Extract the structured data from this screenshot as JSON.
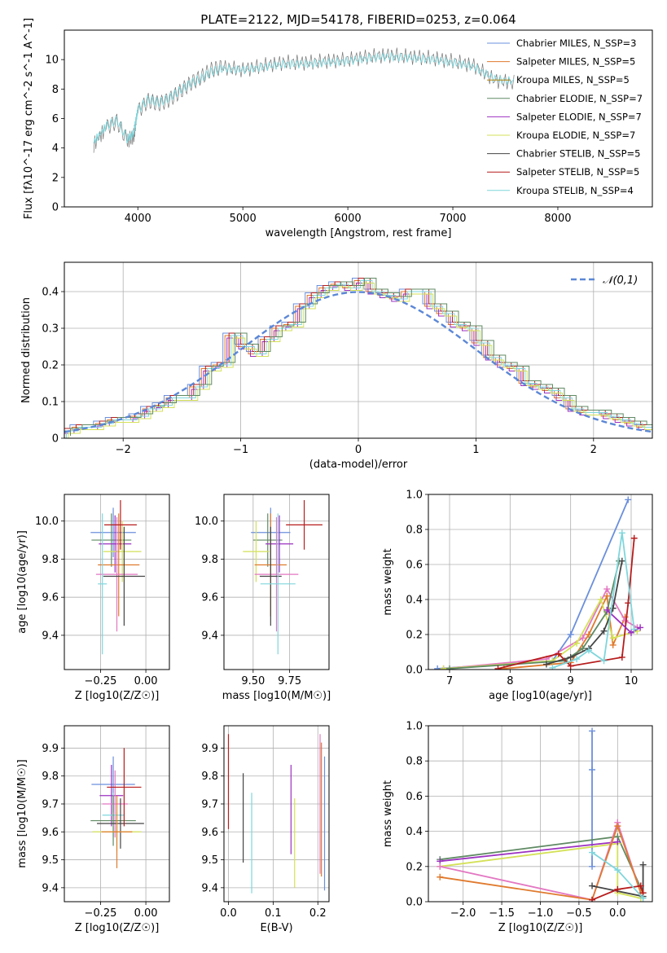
{
  "figure_title": "PLATE=2122, MJD=54178, FIBERID=0253, z=0.064",
  "legend": [
    {
      "label": "Chabrier MILES, N_SSP=3",
      "color": "#6b8fdc"
    },
    {
      "label": "Salpeter MILES, N_SSP=5",
      "color": "#e07a2e"
    },
    {
      "label": "Kroupa MILES, N_SSP=5",
      "color": "#b8860b"
    },
    {
      "label": "Chabrier ELODIE, N_SSP=7",
      "color": "#5f8a63"
    },
    {
      "label": "Salpeter ELODIE, N_SSP=7",
      "color": "#9b30c0"
    },
    {
      "label": "Kroupa ELODIE, N_SSP=7",
      "color": "#d4e157"
    },
    {
      "label": "Chabrier STELIB, N_SSP=5",
      "color": "#444444"
    },
    {
      "label": "Salpeter STELIB, N_SSP=5",
      "color": "#b71c1c"
    },
    {
      "label": "Kroupa STELIB, N_SSP=4",
      "color": "#7fd6dc"
    }
  ],
  "chart_data": [
    {
      "id": "spectrum",
      "type": "line",
      "title": "PLATE=2122, MJD=54178, FIBERID=0253, z=0.064",
      "xlabel": "wavelength [Angstrom, rest frame]",
      "ylabel": "Flux [fλ10^-17 erg cm^-2 s^-1 A^-1]",
      "xlim": [
        3300,
        8900
      ],
      "ylim": [
        0,
        12
      ],
      "xticks": [
        4000,
        5000,
        6000,
        7000,
        8000
      ],
      "yticks": [
        0,
        2,
        4,
        6,
        8,
        10
      ],
      "series": [
        {
          "name": "data",
          "color": "#777777",
          "x": [
            3580,
            3700,
            3800,
            3900,
            3960,
            4000,
            4100,
            4200,
            4300,
            4400,
            4500,
            4600,
            4700,
            4800,
            5000,
            5200,
            5400,
            5600,
            5800,
            6000,
            6200,
            6400,
            6600,
            6800,
            7000,
            7200,
            7400,
            7600
          ],
          "y": [
            4.2,
            5.4,
            5.8,
            4.5,
            4.8,
            6.5,
            7.2,
            7.0,
            7.3,
            7.8,
            8.4,
            8.8,
            9.3,
            9.5,
            9.3,
            9.6,
            9.8,
            9.8,
            9.9,
            10.0,
            10.2,
            10.3,
            10.2,
            10.1,
            9.9,
            9.6,
            8.6,
            8.4
          ]
        },
        {
          "name": "model",
          "color": "#7fd6dc",
          "x": [
            3580,
            3700,
            3800,
            3900,
            3960,
            4000,
            4100,
            4200,
            4300,
            4400,
            4500,
            4600,
            4700,
            4800,
            5000,
            5200,
            5400,
            5600,
            5800,
            6000,
            6200,
            6400,
            6600,
            6800,
            7000,
            7200,
            7400,
            7600
          ],
          "y": [
            4.4,
            5.5,
            5.9,
            4.6,
            5.0,
            6.6,
            7.3,
            7.1,
            7.4,
            7.9,
            8.4,
            8.7,
            9.2,
            9.4,
            9.3,
            9.5,
            9.7,
            9.7,
            9.8,
            9.9,
            10.1,
            10.2,
            10.1,
            10.0,
            9.8,
            9.5,
            8.7,
            8.5
          ]
        }
      ]
    },
    {
      "id": "residuals",
      "type": "line",
      "xlabel": "(data-model)/error",
      "ylabel": "Normed distribution",
      "xlim": [
        -2.5,
        2.5
      ],
      "ylim": [
        0,
        0.48
      ],
      "xticks": [
        -2,
        -1,
        0,
        1,
        2
      ],
      "yticks": [
        0.0,
        0.1,
        0.2,
        0.3,
        0.4
      ],
      "legend": "𝒩(0,1)",
      "bins": [
        -2.5,
        -2.4,
        -2.3,
        -2.2,
        -2.1,
        -2.0,
        -1.9,
        -1.8,
        -1.7,
        -1.6,
        -1.5,
        -1.4,
        -1.3,
        -1.2,
        -1.1,
        -1.0,
        -0.9,
        -0.8,
        -0.7,
        -0.6,
        -0.5,
        -0.4,
        -0.3,
        -0.2,
        -0.1,
        0.0,
        0.1,
        0.2,
        0.3,
        0.4,
        0.5,
        0.6,
        0.7,
        0.8,
        0.9,
        1.0,
        1.1,
        1.2,
        1.3,
        1.4,
        1.5,
        1.6,
        1.7,
        1.8,
        1.9,
        2.0,
        2.1,
        2.2,
        2.3,
        2.4
      ],
      "hist": [
        0.02,
        0.03,
        0.03,
        0.04,
        0.05,
        0.05,
        0.06,
        0.08,
        0.09,
        0.11,
        0.11,
        0.14,
        0.19,
        0.2,
        0.28,
        0.25,
        0.23,
        0.27,
        0.3,
        0.31,
        0.36,
        0.39,
        0.41,
        0.42,
        0.41,
        0.43,
        0.4,
        0.39,
        0.38,
        0.4,
        0.4,
        0.36,
        0.34,
        0.31,
        0.3,
        0.26,
        0.22,
        0.2,
        0.19,
        0.15,
        0.14,
        0.13,
        0.11,
        0.08,
        0.07,
        0.07,
        0.06,
        0.05,
        0.04,
        0.03
      ]
    },
    {
      "id": "age-vs-Z",
      "type": "scatter",
      "xlabel": "Z [log10(Z/Z☉)]",
      "ylabel": "age  [log10(age/yr)]",
      "xlim": [
        -0.45,
        0.13
      ],
      "ylim": [
        9.22,
        10.14
      ],
      "xticks": [
        "-0.25",
        "0.00"
      ],
      "yticks": [
        "9.4",
        "9.6",
        "9.8",
        "10.0"
      ],
      "points": [
        {
          "x": -0.18,
          "y": 9.94,
          "xerr": 0.25,
          "yerr": 0.13,
          "color": "#6b8fdc"
        },
        {
          "x": -0.19,
          "y": 9.9,
          "xerr": 0.22,
          "yerr": 0.14,
          "color": "#5f8a63"
        },
        {
          "x": -0.17,
          "y": 9.88,
          "xerr": 0.18,
          "yerr": 0.15,
          "color": "#9b30c0"
        },
        {
          "x": -0.13,
          "y": 9.84,
          "xerr": 0.21,
          "yerr": 0.16,
          "color": "#d4e157"
        },
        {
          "x": -0.15,
          "y": 9.77,
          "xerr": 0.23,
          "yerr": 0.27,
          "color": "#e07a2e"
        },
        {
          "x": -0.16,
          "y": 9.72,
          "xerr": 0.23,
          "yerr": 0.3,
          "color": "#e377c2"
        },
        {
          "x": -0.12,
          "y": 9.71,
          "xerr": 0.23,
          "yerr": 0.26,
          "color": "#444444"
        },
        {
          "x": -0.14,
          "y": 9.98,
          "xerr": 0.18,
          "yerr": 0.13,
          "color": "#b71c1c"
        },
        {
          "x": -0.24,
          "y": 9.67,
          "xerr": 0.05,
          "yerr": 0.37,
          "color": "#7fd6dc"
        }
      ]
    },
    {
      "id": "age-vs-mass",
      "type": "scatter",
      "xlabel": "mass [log10(M/M☉)]",
      "ylabel": "",
      "xlim": [
        9.3,
        10.02
      ],
      "ylim": [
        9.22,
        10.14
      ],
      "xticks": [
        "9.50",
        "9.75"
      ],
      "yticks": [
        "9.4",
        "9.6",
        "9.8",
        "10.0"
      ],
      "points": [
        {
          "x": 9.62,
          "y": 9.94,
          "xerr": 0.27,
          "yerr": 0.13,
          "color": "#6b8fdc"
        },
        {
          "x": 9.6,
          "y": 9.9,
          "xerr": 0.2,
          "yerr": 0.14,
          "color": "#5f8a63"
        },
        {
          "x": 9.68,
          "y": 9.88,
          "xerr": 0.19,
          "yerr": 0.15,
          "color": "#9b30c0"
        },
        {
          "x": 9.52,
          "y": 9.84,
          "xerr": 0.18,
          "yerr": 0.16,
          "color": "#d4e157"
        },
        {
          "x": 9.62,
          "y": 9.77,
          "xerr": 0.22,
          "yerr": 0.27,
          "color": "#e07a2e"
        },
        {
          "x": 9.66,
          "y": 9.72,
          "xerr": 0.3,
          "yerr": 0.3,
          "color": "#e377c2"
        },
        {
          "x": 9.62,
          "y": 9.71,
          "xerr": 0.15,
          "yerr": 0.26,
          "color": "#444444"
        },
        {
          "x": 9.85,
          "y": 9.98,
          "xerr": 0.25,
          "yerr": 0.13,
          "color": "#b71c1c"
        },
        {
          "x": 9.67,
          "y": 9.67,
          "xerr": 0.24,
          "yerr": 0.37,
          "color": "#7fd6dc"
        }
      ]
    },
    {
      "id": "mass-weight-vs-age",
      "type": "line",
      "xlabel": "age  [log10(age/yr)]",
      "ylabel": "mass weight",
      "xlim": [
        6.65,
        10.35
      ],
      "ylim": [
        0,
        1
      ],
      "xticks": [
        "7",
        "8",
        "9",
        "10"
      ],
      "yticks": [
        "0.0",
        "0.2",
        "0.4",
        "0.6",
        "0.8",
        "1.0"
      ],
      "series": [
        {
          "color": "#6b8fdc",
          "x": [
            6.8,
            8.7,
            9.0,
            9.95
          ],
          "y": [
            0.005,
            0.05,
            0.2,
            0.97
          ]
        },
        {
          "color": "#e07a2e",
          "x": [
            7.9,
            9.0,
            9.3,
            9.6,
            9.7,
            9.9
          ],
          "y": [
            0.005,
            0.04,
            0.2,
            0.42,
            0.14,
            0.3
          ]
        },
        {
          "color": "#e377c2",
          "x": [
            6.9,
            8.6,
            9.2,
            9.6,
            9.9,
            10.1
          ],
          "y": [
            0.005,
            0.06,
            0.18,
            0.46,
            0.28,
            0.24
          ]
        },
        {
          "color": "#d4e157",
          "x": [
            6.9,
            8.7,
            9.1,
            9.5,
            9.7,
            10.1
          ],
          "y": [
            0.005,
            0.05,
            0.15,
            0.4,
            0.18,
            0.22
          ]
        },
        {
          "color": "#5f8a63",
          "x": [
            7.0,
            8.9,
            9.2,
            9.6,
            9.8
          ],
          "y": [
            0.005,
            0.05,
            0.12,
            0.33,
            0.62
          ]
        },
        {
          "color": "#444444",
          "x": [
            8.6,
            9.0,
            9.3,
            9.55,
            9.7,
            9.85
          ],
          "y": [
            0.03,
            0.07,
            0.12,
            0.22,
            0.35,
            0.62
          ]
        },
        {
          "color": "#b71c1c",
          "x": [
            7.8,
            8.8,
            9.0,
            9.85,
            9.95,
            10.05
          ],
          "y": [
            0.005,
            0.09,
            0.02,
            0.07,
            0.38,
            0.75
          ]
        },
        {
          "color": "#9b30c0",
          "x": [
            9.6,
            10.0,
            10.15
          ],
          "y": [
            0.34,
            0.21,
            0.24
          ]
        },
        {
          "color": "#7fd6dc",
          "x": [
            8.7,
            9.1,
            9.3,
            9.55,
            9.85,
            10.05
          ],
          "y": [
            0.01,
            0.06,
            0.11,
            0.05,
            0.78,
            0.23
          ]
        }
      ]
    },
    {
      "id": "mass-vs-Z",
      "type": "scatter",
      "xlabel": "Z [log10(Z/Z☉)]",
      "ylabel": "mass [log10(M/M☉)]",
      "xlim": [
        -0.45,
        0.13
      ],
      "ylim": [
        9.35,
        9.98
      ],
      "xticks": [
        "-0.25",
        "0.00"
      ],
      "yticks": [
        "9.4",
        "9.5",
        "9.6",
        "9.7",
        "9.8",
        "9.9"
      ],
      "points": [
        {
          "x": -0.18,
          "y": 9.77,
          "xerr": 0.24,
          "yerr": 0.1,
          "color": "#6b8fdc"
        },
        {
          "x": -0.19,
          "y": 9.73,
          "xerr": 0.13,
          "yerr": 0.11,
          "color": "#9b30c0"
        },
        {
          "x": -0.17,
          "y": 9.7,
          "xerr": 0.14,
          "yerr": 0.12,
          "color": "#e377c2"
        },
        {
          "x": -0.18,
          "y": 9.66,
          "xerr": 0.12,
          "yerr": 0.08,
          "color": "#7fd6dc"
        },
        {
          "x": -0.18,
          "y": 9.64,
          "xerr": 0.25,
          "yerr": 0.09,
          "color": "#5f8a63"
        },
        {
          "x": -0.14,
          "y": 9.63,
          "xerr": 0.26,
          "yerr": 0.09,
          "color": "#444444"
        },
        {
          "x": -0.16,
          "y": 9.6,
          "xerr": 0.27,
          "yerr": 0.07,
          "color": "#d4e157"
        },
        {
          "x": -0.16,
          "y": 9.6,
          "xerr": 0.17,
          "yerr": 0.13,
          "color": "#e07a2e"
        },
        {
          "x": -0.12,
          "y": 9.76,
          "xerr": 0.19,
          "yerr": 0.14,
          "color": "#b71c1c"
        }
      ]
    },
    {
      "id": "mass-vs-EBV",
      "type": "scatter",
      "xlabel": "E(B-V)",
      "ylabel": "",
      "xlim": [
        -0.01,
        0.225
      ],
      "ylim": [
        9.35,
        9.98
      ],
      "xticks": [
        "0.0",
        "0.1",
        "0.2"
      ],
      "yticks": [
        "9.4",
        "9.5",
        "9.6",
        "9.7",
        "9.8",
        "9.9"
      ],
      "points": [
        {
          "x": 0.0,
          "y": 9.78,
          "xerr": 0,
          "yerr": 0.17,
          "color": "#b71c1c"
        },
        {
          "x": 0.033,
          "y": 9.65,
          "xerr": 0,
          "yerr": 0.16,
          "color": "#444444"
        },
        {
          "x": 0.052,
          "y": 9.56,
          "xerr": 0,
          "yerr": 0.18,
          "color": "#7fd6dc"
        },
        {
          "x": 0.14,
          "y": 9.68,
          "xerr": 0,
          "yerr": 0.16,
          "color": "#9b30c0"
        },
        {
          "x": 0.148,
          "y": 9.56,
          "xerr": 0,
          "yerr": 0.16,
          "color": "#d4e157"
        },
        {
          "x": 0.205,
          "y": 9.7,
          "xerr": 0,
          "yerr": 0.25,
          "color": "#e377c2"
        },
        {
          "x": 0.208,
          "y": 9.68,
          "xerr": 0,
          "yerr": 0.24,
          "color": "#e07a2e"
        },
        {
          "x": 0.215,
          "y": 9.63,
          "xerr": 0,
          "yerr": 0.24,
          "color": "#6b8fdc"
        }
      ]
    },
    {
      "id": "mass-weight-vs-Z",
      "type": "line",
      "xlabel": "Z [log10(Z/Z☉)]",
      "ylabel": "mass weight",
      "xlim": [
        -2.45,
        0.45
      ],
      "ylim": [
        0,
        1
      ],
      "xticks": [
        "-2.0",
        "-1.5",
        "-1.0",
        "-0.5",
        "0.0"
      ],
      "yticks": [
        "0.0",
        "0.2",
        "0.4",
        "0.6",
        "0.8",
        "1.0"
      ],
      "series": [
        {
          "color": "#6b8fdc",
          "x": [
            -0.33,
            -0.33,
            -0.33
          ],
          "y": [
            0.97,
            0.2,
            0.75
          ]
        },
        {
          "color": "#5f8a63",
          "x": [
            -2.3,
            0.0,
            0.33
          ],
          "y": [
            0.24,
            0.37,
            0.05
          ]
        },
        {
          "color": "#d4e157",
          "x": [
            -2.3,
            0.0,
            0.0,
            0.3
          ],
          "y": [
            0.2,
            0.33,
            0.05,
            0.02
          ]
        },
        {
          "color": "#9b30c0",
          "x": [
            -2.3,
            0.0
          ],
          "y": [
            0.23,
            0.34
          ]
        },
        {
          "color": "#e377c2",
          "x": [
            -2.3,
            -0.33,
            0.0,
            0.3
          ],
          "y": [
            0.2,
            0.01,
            0.45,
            0.05
          ]
        },
        {
          "color": "#e07a2e",
          "x": [
            -2.3,
            -0.33,
            0.0,
            0.3
          ],
          "y": [
            0.14,
            0.01,
            0.43,
            0.05
          ]
        },
        {
          "color": "#444444",
          "x": [
            -0.33,
            0.33,
            0.33
          ],
          "y": [
            0.09,
            0.03,
            0.21
          ]
        },
        {
          "color": "#b71c1c",
          "x": [
            -0.33,
            0.0,
            0.3,
            0.33
          ],
          "y": [
            0.01,
            0.07,
            0.09,
            0.05
          ]
        },
        {
          "color": "#7fd6dc",
          "x": [
            -0.33,
            0.0,
            0.33
          ],
          "y": [
            0.28,
            0.18,
            0.02
          ]
        }
      ]
    }
  ]
}
